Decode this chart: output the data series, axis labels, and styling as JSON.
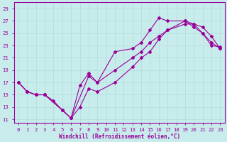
{
  "xlabel": "Windchill (Refroidissement éolien,°C)",
  "bg_color": "#c8ecec",
  "line_color": "#990099",
  "grid_color": "#b8e0e0",
  "xlim": [
    -0.5,
    23.5
  ],
  "ylim": [
    10.5,
    30.0
  ],
  "xticks": [
    0,
    1,
    2,
    3,
    4,
    5,
    6,
    7,
    8,
    9,
    10,
    11,
    12,
    13,
    14,
    15,
    16,
    17,
    18,
    19,
    20,
    21,
    22,
    23
  ],
  "yticks": [
    11,
    13,
    15,
    17,
    19,
    21,
    23,
    25,
    27,
    29
  ],
  "line1_x": [
    0,
    1,
    2,
    3,
    4,
    5,
    6,
    8,
    9,
    11,
    13,
    14,
    15,
    16,
    17,
    19,
    20,
    21,
    22,
    23
  ],
  "line1_y": [
    17,
    15.5,
    15,
    15,
    14,
    12.5,
    11.2,
    18,
    17,
    22,
    22.5,
    23.5,
    25.5,
    27.5,
    27,
    27,
    26.5,
    25,
    23,
    22.8
  ],
  "line2_x": [
    0,
    1,
    2,
    3,
    5,
    6,
    7,
    8,
    9,
    11,
    13,
    14,
    15,
    16,
    17,
    19,
    20,
    21,
    22,
    23
  ],
  "line2_y": [
    17,
    15.5,
    15,
    15,
    12.5,
    11.2,
    16.5,
    18.5,
    17,
    19,
    21,
    22,
    23.5,
    24.5,
    25.5,
    27,
    26,
    25,
    23.5,
    22.5
  ],
  "line3_x": [
    0,
    1,
    2,
    3,
    5,
    6,
    7,
    8,
    9,
    11,
    13,
    14,
    15,
    16,
    17,
    19,
    20,
    21,
    22,
    23
  ],
  "line3_y": [
    17,
    15.5,
    15,
    15,
    12.5,
    11.2,
    13,
    16,
    15.5,
    17,
    19.5,
    21,
    22,
    24,
    25.5,
    26.5,
    26.5,
    26,
    24.5,
    22.5
  ]
}
